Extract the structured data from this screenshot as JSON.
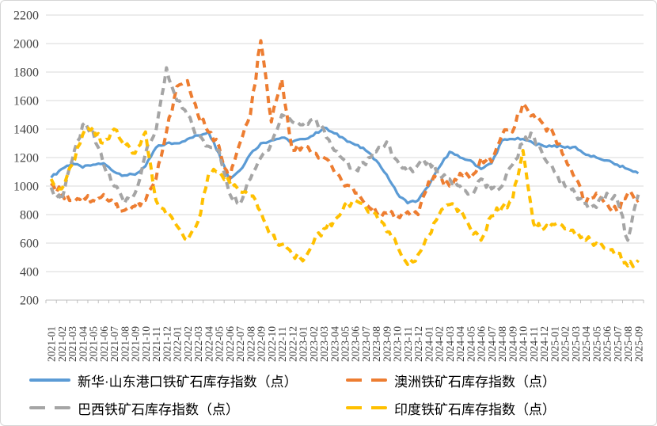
{
  "chart_data": {
    "type": "line",
    "title": "",
    "xlabel": "",
    "ylabel": "",
    "grid": true,
    "legend_position": "bottom",
    "x_categories": [
      "2021-01",
      "2021-02",
      "2021-03",
      "2021-04",
      "2021-05",
      "2021-06",
      "2021-07",
      "2021-08",
      "2021-09",
      "2021-10",
      "2021-11",
      "2021-12",
      "2022-01",
      "2022-02",
      "2022-03",
      "2022-04",
      "2022-05",
      "2022-06",
      "2022-07",
      "2022-08",
      "2022-09",
      "2022-10",
      "2022-11",
      "2022-12",
      "2023-01",
      "2023-02",
      "2023-03",
      "2023-04",
      "2023-05",
      "2023-06",
      "2023-07",
      "2023-08",
      "2023-09",
      "2023-10",
      "2023-11",
      "2023-12",
      "2024-01",
      "2024-02",
      "2024-03",
      "2024-04",
      "2024-05",
      "2024-06",
      "2024-07",
      "2024-08",
      "2024-09",
      "2024-10",
      "2024-11",
      "2024-12",
      "2025-01",
      "2025-02",
      "2025-03",
      "2025-04",
      "2025-05",
      "2025-06",
      "2025-07",
      "2025-08",
      "2025-09"
    ],
    "y_axis": {
      "min": 200,
      "max": 2200,
      "step": 200,
      "ticks": [
        200,
        400,
        600,
        800,
        1000,
        1200,
        1400,
        1600,
        1800,
        2000,
        2200
      ]
    },
    "series": [
      {
        "name": "新华·山东港口铁矿石库存指数（点）",
        "color": "#5B9BD5",
        "style": "solid",
        "values": [
          1060,
          1120,
          1160,
          1130,
          1150,
          1160,
          1100,
          1075,
          1080,
          1140,
          1270,
          1300,
          1300,
          1330,
          1355,
          1380,
          1230,
          1050,
          1110,
          1225,
          1300,
          1320,
          1340,
          1310,
          1330,
          1355,
          1410,
          1370,
          1330,
          1290,
          1250,
          1180,
          1080,
          950,
          880,
          900,
          1000,
          1130,
          1240,
          1200,
          1180,
          1120,
          1160,
          1320,
          1330,
          1330,
          1300,
          1280,
          1285,
          1270,
          1275,
          1220,
          1200,
          1180,
          1150,
          1120,
          1090
        ]
      },
      {
        "name": "澳洲铁矿石库存指数（点）",
        "color": "#ED7D31",
        "style": "dashed",
        "values": [
          1020,
          950,
          900,
          930,
          900,
          940,
          870,
          830,
          860,
          900,
          1050,
          1380,
          1700,
          1740,
          1500,
          1380,
          1280,
          1040,
          1300,
          1500,
          2020,
          1450,
          1750,
          1250,
          1280,
          1230,
          1200,
          1100,
          1000,
          950,
          870,
          820,
          810,
          790,
          820,
          800,
          1030,
          1050,
          1000,
          1090,
          1050,
          1200,
          1170,
          1360,
          1380,
          1580,
          1500,
          1430,
          1350,
          1200,
          1050,
          880,
          950,
          880,
          820,
          950,
          900
        ]
      },
      {
        "name": "巴西铁矿石库存指数（点）",
        "color": "#A5A5A5",
        "style": "dashed",
        "values": [
          990,
          900,
          1180,
          1430,
          1380,
          1150,
          1000,
          880,
          950,
          1230,
          1390,
          1830,
          1600,
          1500,
          1350,
          1280,
          1250,
          950,
          870,
          1050,
          1200,
          1300,
          1500,
          1450,
          1430,
          1470,
          1400,
          1250,
          1180,
          1120,
          1150,
          1240,
          1310,
          1180,
          1100,
          1150,
          1180,
          1100,
          1050,
          1000,
          950,
          1050,
          980,
          1000,
          1150,
          1300,
          1360,
          1200,
          1100,
          1000,
          950,
          880,
          850,
          950,
          900,
          620,
          940
        ]
      },
      {
        "name": "印度铁矿石库存指数（点）",
        "color": "#FFC000",
        "style": "dashed",
        "values": [
          1050,
          980,
          1150,
          1360,
          1410,
          1300,
          1400,
          1280,
          1230,
          1380,
          900,
          800,
          720,
          620,
          750,
          1080,
          1100,
          1030,
          960,
          930,
          820,
          650,
          590,
          520,
          475,
          600,
          700,
          760,
          870,
          900,
          850,
          800,
          680,
          580,
          450,
          520,
          650,
          800,
          870,
          840,
          700,
          620,
          790,
          850,
          900,
          1250,
          740,
          700,
          730,
          700,
          660,
          620,
          600,
          560,
          530,
          440,
          480
        ]
      }
    ],
    "render_hints": {
      "grid_color": "#D9D9D9",
      "axis_color": "#BFBFBF",
      "label_color": "#3F3F3F",
      "noise_amplitude_solid": 9,
      "noise_amplitude_dashed": 30
    }
  }
}
